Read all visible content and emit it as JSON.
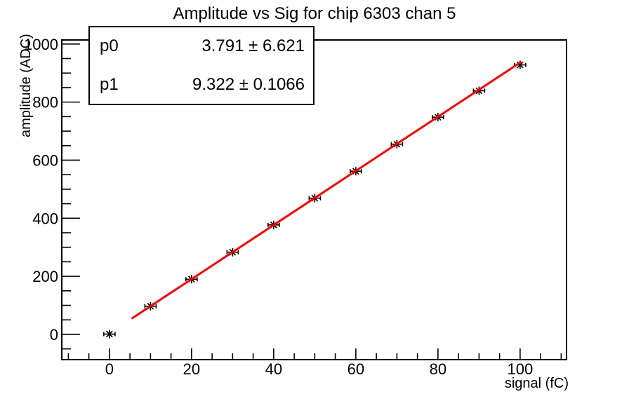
{
  "chart_data": {
    "type": "scatter",
    "title": "Amplitude vs Sig for chip 6303 chan 5",
    "xlabel": "signal (fC)",
    "ylabel": "amplitude (ADC)",
    "xlim": [
      -11.6,
      111.3
    ],
    "ylim": [
      -87,
      1014
    ],
    "xticks": [
      0,
      20,
      40,
      60,
      80,
      100
    ],
    "yticks": [
      0,
      200,
      400,
      600,
      800,
      1000
    ],
    "x_minor_step": 5,
    "y_minor_step": 50,
    "grid": false,
    "legend": "none",
    "marker": "asterisk-with-x-error-bars",
    "series": [
      {
        "name": "amplitude vs signal",
        "x": [
          0,
          10,
          20,
          30,
          40,
          50,
          60,
          70,
          80,
          90,
          100
        ],
        "y": [
          1,
          97,
          190,
          283,
          377,
          469,
          562,
          655,
          748,
          839,
          928
        ],
        "xerr": 1.2,
        "color": "#000000"
      }
    ],
    "fit": {
      "p0": 3.791,
      "p1": 9.322,
      "x_range": [
        5.4,
        100.3
      ],
      "color": "#ff0000"
    }
  },
  "stats_box": {
    "rows": [
      {
        "name": "p0",
        "value": "3.791 ± 6.621"
      },
      {
        "name": "p1",
        "value": "9.322 ± 0.1066"
      }
    ]
  },
  "colors": {
    "background": "#ffffff",
    "frame": "#000000",
    "marker": "#000000",
    "fit_line": "#ff0000"
  }
}
